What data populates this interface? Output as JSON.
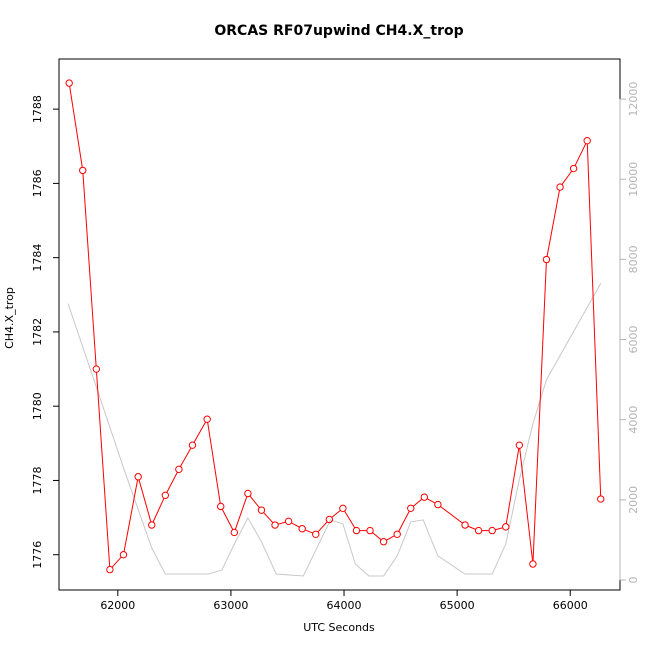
{
  "chart_data": {
    "type": "line",
    "title": "ORCAS RF07upwind CH4.X_trop",
    "xlabel": "UTC Seconds",
    "ylabel": "CH4.X_trop",
    "xlim": [
      61480,
      66440
    ],
    "ylim": [
      1775.05,
      1789.35
    ],
    "y2lim": [
      -250,
      13000
    ],
    "x_ticks": [
      62000,
      63000,
      64000,
      65000,
      66000
    ],
    "x_tick_labels": [
      "62000",
      "63000",
      "64000",
      "65000",
      "66000"
    ],
    "y_ticks": [
      1776,
      1778,
      1780,
      1782,
      1784,
      1786,
      1788
    ],
    "y_tick_labels": [
      "1776",
      "1778",
      "1780",
      "1782",
      "1784",
      "1786",
      "1788"
    ],
    "y2_ticks": [
      0,
      2000,
      4000,
      6000,
      8000,
      10000,
      12000
    ],
    "y2_tick_labels": [
      "0",
      "2000",
      "4000",
      "6000",
      "8000",
      "10000",
      "12000"
    ],
    "grid": false,
    "legend": "none",
    "series": [
      {
        "axis": "left",
        "color": "#ff0000",
        "markers": "open-circle",
        "x": [
          61570,
          61690,
          61810,
          61930,
          62050,
          62180,
          62300,
          62420,
          62540,
          62660,
          62790,
          62910,
          63030,
          63150,
          63270,
          63390,
          63510,
          63630,
          63750,
          63870,
          63990,
          64110,
          64230,
          64350,
          64470,
          64590,
          64710,
          64830,
          65070,
          65190,
          65310,
          65430,
          65550,
          65670,
          65790,
          65910,
          66030,
          66150,
          66270
        ],
        "y": [
          1788.7,
          1786.35,
          1781.0,
          1775.6,
          1776.0,
          1778.1,
          1776.8,
          1777.6,
          1778.3,
          1778.95,
          1779.65,
          1777.3,
          1776.6,
          1777.65,
          1777.2,
          1776.8,
          1776.9,
          1776.7,
          1776.55,
          1776.95,
          1777.25,
          1776.65,
          1776.65,
          1776.35,
          1776.55,
          1777.25,
          1777.55,
          1777.35,
          1776.8,
          1776.65,
          1776.65,
          1776.75,
          1778.95,
          1775.75,
          1783.95,
          1785.9,
          1786.4,
          1787.15,
          1777.5
        ]
      },
      {
        "axis": "right",
        "color": "#c8c8c8",
        "markers": "none",
        "x": [
          61560,
          61800,
          62050,
          62300,
          62420,
          62550,
          62800,
          62920,
          63040,
          63150,
          63270,
          63400,
          63640,
          63880,
          63990,
          64100,
          64220,
          64350,
          64470,
          64590,
          64700,
          64830,
          65070,
          65310,
          65430,
          65550,
          65670,
          65790,
          66030,
          66270
        ],
        "y": [
          6900,
          4900,
          2800,
          800,
          150,
          150,
          150,
          250,
          950,
          1550,
          950,
          150,
          100,
          1500,
          1400,
          400,
          100,
          100,
          600,
          1450,
          1500,
          600,
          150,
          150,
          900,
          2500,
          3900,
          5000,
          6200,
          7400
        ]
      }
    ]
  }
}
